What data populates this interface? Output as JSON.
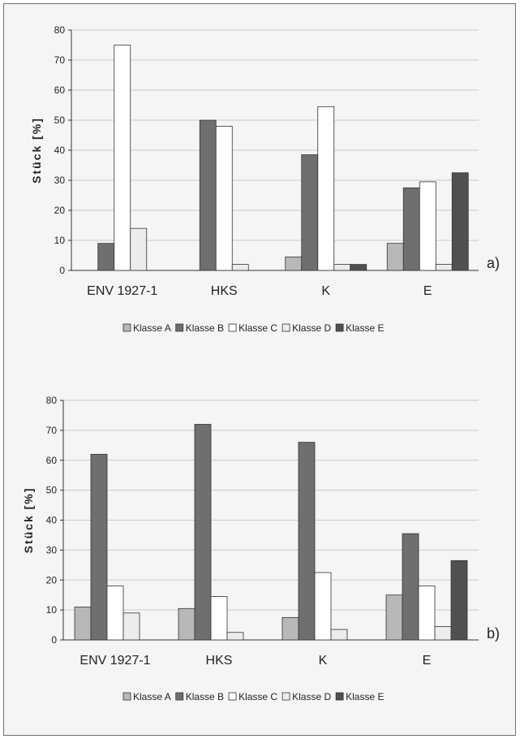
{
  "chart_data": [
    {
      "type": "bar",
      "panel_label": "a)",
      "categories": [
        "ENV 1927-1",
        "HKS",
        "K",
        "E"
      ],
      "ylabel": "Stück [%]",
      "ylim": [
        0,
        80
      ],
      "yticks": [
        0,
        10,
        20,
        30,
        40,
        50,
        60,
        70,
        80
      ],
      "grid": true,
      "legend": "bottom",
      "series": [
        {
          "name": "Klasse A",
          "color": "#b8b8b8",
          "values": [
            0,
            0,
            4.5,
            9
          ]
        },
        {
          "name": "Klasse B",
          "color": "#6f6f6f",
          "values": [
            9,
            50,
            38.5,
            27.5
          ]
        },
        {
          "name": "Klasse C",
          "color": "#ffffff",
          "values": [
            75,
            48,
            54.5,
            29.5
          ]
        },
        {
          "name": "Klasse D",
          "color": "#ececec",
          "values": [
            14,
            2,
            2,
            2
          ]
        },
        {
          "name": "Klasse E",
          "color": "#505050",
          "values": [
            0,
            0,
            2,
            32.5
          ]
        }
      ]
    },
    {
      "type": "bar",
      "panel_label": "b)",
      "categories": [
        "ENV 1927-1",
        "HKS",
        "K",
        "E"
      ],
      "ylabel": "Stück [%]",
      "ylim": [
        0,
        80
      ],
      "yticks": [
        0,
        10,
        20,
        30,
        40,
        50,
        60,
        70,
        80
      ],
      "grid": true,
      "legend": "bottom",
      "series": [
        {
          "name": "Klasse A",
          "color": "#b8b8b8",
          "values": [
            11,
            10.5,
            7.5,
            15
          ]
        },
        {
          "name": "Klasse B",
          "color": "#6f6f6f",
          "values": [
            62,
            72,
            66,
            35.5
          ]
        },
        {
          "name": "Klasse C",
          "color": "#ffffff",
          "values": [
            18,
            14.5,
            22.5,
            18
          ]
        },
        {
          "name": "Klasse D",
          "color": "#ececec",
          "values": [
            9,
            2.5,
            3.5,
            4.5
          ]
        },
        {
          "name": "Klasse E",
          "color": "#505050",
          "values": [
            0,
            0,
            0,
            26.5
          ]
        }
      ]
    }
  ]
}
